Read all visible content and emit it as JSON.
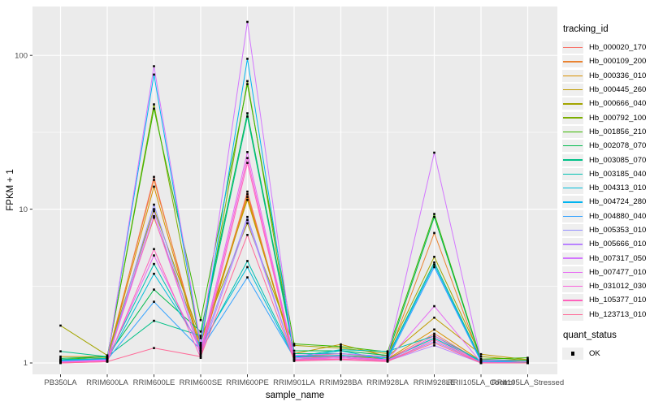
{
  "figure": {
    "x_axis_title": "sample_name",
    "y_axis_title": "FPKM + 1",
    "legend1_title": "tracking_id",
    "legend2_title": "quant_status",
    "quant_label": "OK",
    "colors": {
      "panel_bg": "#EBEBEB",
      "grid": "#FFFFFF",
      "key_bg": "#EFEFEF",
      "point": "#000000",
      "tick_text": "#4D4D4D",
      "tick_mark": "#333333"
    }
  },
  "chart_data": {
    "type": "line",
    "title": "",
    "xlabel": "sample_name",
    "ylabel": "FPKM + 1",
    "y_scale": "log10",
    "y_ticks": [
      1,
      10,
      100
    ],
    "y_minor_ticks": [
      3.162,
      31.623
    ],
    "ylim": [
      0.85,
      200
    ],
    "grid": true,
    "legend_position": "right",
    "point_shape": "filled-square",
    "quant_status": "OK",
    "categories": [
      "PB350LA",
      "RRIM600LA",
      "RRIM600LE",
      "RRIM600SE",
      "RRIM600PE",
      "RRIM901LA",
      "RRIM928BA",
      "RRIM928LA",
      "RRIM928LE",
      "RRII105LA_Control",
      "RRII105LA_Stressed"
    ],
    "series": [
      {
        "name": "Hb_000020_170",
        "color": "#F8766D",
        "values": [
          1.02,
          1.05,
          16.2,
          1.15,
          13.0,
          1.06,
          1.1,
          1.05,
          1.55,
          1.02,
          1.0
        ]
      },
      {
        "name": "Hb_000109_200",
        "color": "#EA8331",
        "values": [
          1.04,
          1.08,
          15.5,
          1.25,
          12.5,
          1.1,
          1.15,
          1.08,
          7.0,
          1.04,
          1.02
        ]
      },
      {
        "name": "Hb_000336_010",
        "color": "#D89000",
        "values": [
          1.03,
          1.06,
          14.0,
          1.2,
          12.0,
          1.08,
          1.12,
          1.06,
          1.65,
          1.03,
          1.01
        ]
      },
      {
        "name": "Hb_000445_260",
        "color": "#C09B00",
        "values": [
          1.1,
          1.1,
          8.8,
          1.35,
          11.5,
          1.15,
          1.32,
          1.1,
          1.97,
          1.14,
          1.05
        ]
      },
      {
        "name": "Hb_000666_040",
        "color": "#A3A500",
        "values": [
          1.75,
          1.12,
          10.0,
          1.45,
          8.1,
          1.3,
          1.25,
          1.15,
          4.9,
          1.1,
          1.04
        ]
      },
      {
        "name": "Hb_000792_100",
        "color": "#7CAE00",
        "values": [
          1.02,
          1.08,
          48.0,
          1.3,
          68.0,
          1.1,
          1.1,
          1.06,
          1.45,
          1.02,
          1.0
        ]
      },
      {
        "name": "Hb_001856_210",
        "color": "#39B600",
        "values": [
          1.05,
          1.1,
          45.0,
          1.9,
          65.0,
          1.33,
          1.28,
          1.18,
          9.3,
          1.06,
          1.08
        ]
      },
      {
        "name": "Hb_002078_070",
        "color": "#00BB4E",
        "values": [
          1.07,
          1.1,
          3.0,
          1.6,
          42.0,
          1.2,
          1.2,
          1.12,
          8.9,
          1.05,
          1.04
        ]
      },
      {
        "name": "Hb_003085_070",
        "color": "#00C087",
        "values": [
          1.19,
          1.1,
          1.88,
          1.5,
          40.0,
          1.15,
          1.15,
          1.1,
          4.5,
          1.05,
          1.02
        ]
      },
      {
        "name": "Hb_003185_040",
        "color": "#00C0B2",
        "values": [
          1.05,
          1.07,
          4.4,
          1.25,
          4.6,
          1.1,
          1.22,
          1.19,
          1.5,
          1.03,
          1.0
        ]
      },
      {
        "name": "Hb_004313_010",
        "color": "#00BCD8",
        "values": [
          1.03,
          1.05,
          3.8,
          1.3,
          4.2,
          1.08,
          1.2,
          1.05,
          1.45,
          1.02,
          1.0
        ]
      },
      {
        "name": "Hb_004724_280",
        "color": "#00B4F0",
        "values": [
          1.04,
          1.06,
          75.0,
          1.28,
          95.0,
          1.1,
          1.12,
          1.08,
          4.35,
          1.03,
          1.02
        ]
      },
      {
        "name": "Hb_004880_040",
        "color": "#35A2FF",
        "values": [
          1.02,
          1.05,
          2.5,
          1.22,
          3.6,
          1.08,
          1.1,
          1.05,
          4.2,
          1.02,
          1.0
        ]
      },
      {
        "name": "Hb_005353_010",
        "color": "#9590FF",
        "values": [
          1.01,
          1.04,
          10.7,
          1.18,
          8.9,
          1.06,
          1.08,
          1.04,
          1.38,
          1.01,
          1.0
        ]
      },
      {
        "name": "Hb_005666_010",
        "color": "#B983FF",
        "values": [
          1.01,
          1.03,
          9.7,
          1.12,
          8.5,
          1.05,
          1.06,
          1.03,
          1.3,
          1.0,
          1.0
        ]
      },
      {
        "name": "Hb_007317_050",
        "color": "#D376FF",
        "values": [
          1.02,
          1.05,
          85.0,
          1.32,
          165.0,
          1.12,
          1.15,
          1.1,
          23.3,
          1.05,
          1.02
        ]
      },
      {
        "name": "Hb_007477_010",
        "color": "#E76BF3",
        "values": [
          1.01,
          1.04,
          5.0,
          1.2,
          23.5,
          1.08,
          1.1,
          1.05,
          2.34,
          1.01,
          1.0
        ]
      },
      {
        "name": "Hb_031012_030",
        "color": "#FA62DB",
        "values": [
          1.01,
          1.03,
          9.0,
          1.15,
          21.5,
          1.05,
          1.08,
          1.04,
          1.5,
          1.0,
          1.0
        ]
      },
      {
        "name": "Hb_105377_010",
        "color": "#FF62BC",
        "values": [
          1.0,
          1.02,
          5.5,
          1.08,
          20.0,
          1.03,
          1.05,
          1.02,
          1.42,
          1.0,
          1.0
        ]
      },
      {
        "name": "Hb_123713_010",
        "color": "#FF6A98",
        "values": [
          1.0,
          1.02,
          1.25,
          1.1,
          6.8,
          1.04,
          1.06,
          1.03,
          1.35,
          1.0,
          1.0
        ]
      }
    ]
  }
}
